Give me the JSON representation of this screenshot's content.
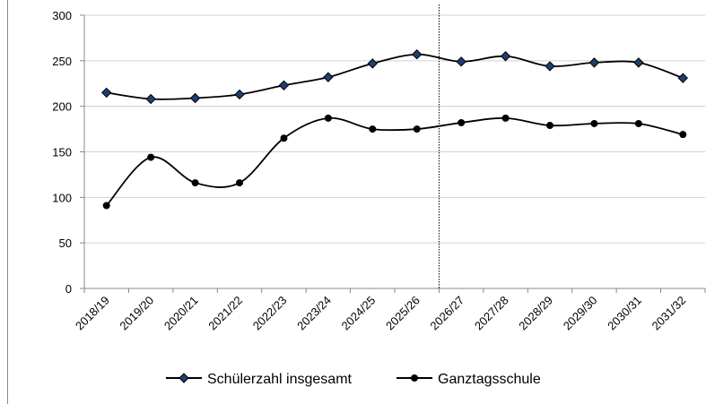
{
  "chart_data": {
    "type": "line",
    "categories": [
      "2018/19",
      "2019/20",
      "2020/21",
      "2021/22",
      "2022/23",
      "2023/24",
      "2024/25",
      "2025/26",
      "2026/27",
      "2027/28",
      "2028/29",
      "2029/30",
      "2030/31",
      "2031/32"
    ],
    "series": [
      {
        "name": "Schülerzahl insgesamt",
        "color": "#000000",
        "marker": "diamond",
        "marker_color": "#1f3f6e",
        "values": [
          215,
          208,
          209,
          213,
          223,
          232,
          247,
          257,
          249,
          255,
          244,
          248,
          248,
          231
        ]
      },
      {
        "name": "Ganztagsschule",
        "color": "#000000",
        "marker": "circle",
        "marker_color": "#000000",
        "values": [
          91,
          144,
          116,
          116,
          165,
          187,
          175,
          175,
          182,
          187,
          179,
          181,
          181,
          169
        ]
      }
    ],
    "ylim": [
      0,
      300
    ],
    "yticks": [
      0,
      50,
      100,
      150,
      200,
      250,
      300
    ],
    "grid": true,
    "smooth": true,
    "legend": "bottom"
  }
}
